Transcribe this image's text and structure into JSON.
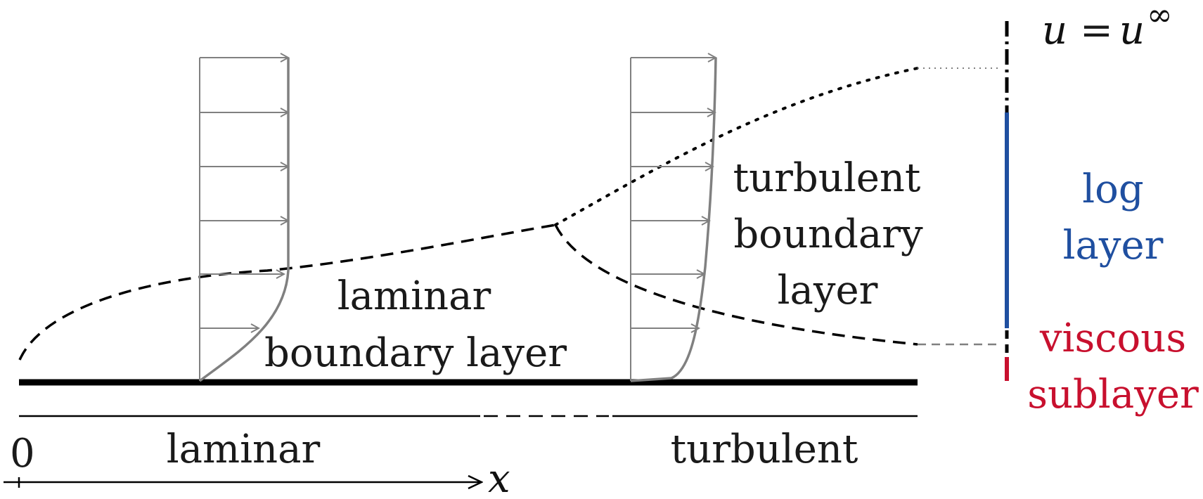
{
  "labels": {
    "laminar_region": "laminar",
    "turbulent_region": "turbulent",
    "laminar_bl_line1": "laminar",
    "laminar_bl_line2": "boundary layer",
    "turbulent_bl_line1": "turbulent",
    "turbulent_bl_line2": "boundary",
    "turbulent_bl_line3": "layer",
    "log_line1": "log",
    "log_line2": "layer",
    "viscous_line1": "viscous",
    "viscous_line2": "sublayer",
    "origin": "0",
    "x_axis": "x",
    "freestream_u": "u",
    "freestream_eq": "=",
    "freestream_uinf": "u",
    "freestream_inf": "∞"
  },
  "colors": {
    "plate": "#000000",
    "profile": "#808080",
    "log_layer": "#1f4fa0",
    "viscous_sublayer": "#c8102e"
  }
}
